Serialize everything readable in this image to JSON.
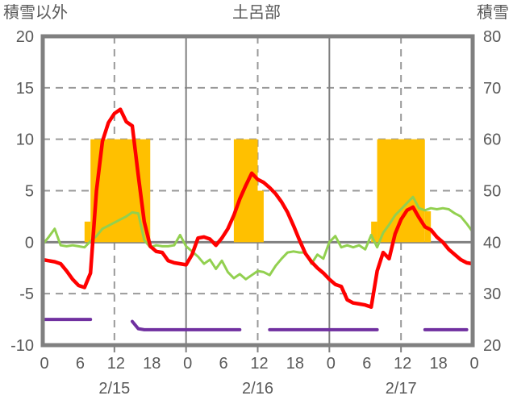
{
  "header": {
    "left_axis_title": "積雪以外",
    "title": "土呂部",
    "right_axis_title": "積雪"
  },
  "chart_data": {
    "type": "combo-bar-line",
    "title": "土呂部",
    "grid": true,
    "legend": "none",
    "colors": {
      "bar": "#FFC000",
      "red_line": "#FF0000",
      "green_line": "#92D050",
      "purple_line": "#7030A0",
      "frame": "#808080",
      "gridline": "#999999",
      "text": "#595959"
    },
    "left_axis": {
      "title": "積雪以外",
      "min": -10,
      "max": 20,
      "tick_step": 5,
      "tick_values": [
        20,
        15,
        10,
        5,
        0,
        -5,
        -10
      ],
      "tick_labels": [
        "20",
        "15",
        "10",
        "5",
        "0",
        "-5",
        "-10"
      ]
    },
    "right_axis": {
      "title": "積雪",
      "min": 20,
      "max": 80,
      "tick_step": 10,
      "tick_values": [
        80,
        70,
        60,
        50,
        40,
        30,
        20
      ],
      "tick_labels": [
        "80",
        "70",
        "60",
        "50",
        "40",
        "30",
        "20"
      ]
    },
    "x_axis": {
      "total_hours": 72,
      "tick_hours": [
        0,
        6,
        12,
        18,
        24,
        30,
        36,
        42,
        48,
        54,
        60,
        66,
        72
      ],
      "tick_labels": [
        "0",
        "6",
        "12",
        "18",
        "0",
        "6",
        "12",
        "18",
        "0",
        "6",
        "12",
        "18",
        "0"
      ],
      "day_labels": [
        {
          "label": "2/15",
          "hour": 12
        },
        {
          "label": "2/16",
          "hour": 36
        },
        {
          "label": "2/17",
          "hour": 60
        }
      ],
      "solid_gridline_hours": [
        24,
        48
      ],
      "dashed_gridline_hours": [
        12,
        36,
        60
      ],
      "bottom_tick_hours": [
        12,
        24,
        36,
        48,
        60
      ]
    },
    "bars": {
      "name": "snowfall-bars",
      "axis": "left",
      "color": "#FFC000",
      "segments": [
        {
          "start_hour": 7,
          "end_hour": 8,
          "value": 2
        },
        {
          "start_hour": 8,
          "end_hour": 18,
          "value": 10
        },
        {
          "start_hour": 32,
          "end_hour": 36,
          "value": 10
        },
        {
          "start_hour": 36,
          "end_hour": 37,
          "value": 5
        },
        {
          "start_hour": 55,
          "end_hour": 56,
          "value": 2
        },
        {
          "start_hour": 56,
          "end_hour": 64,
          "value": 10
        },
        {
          "start_hour": 64,
          "end_hour": 65,
          "value": 3
        }
      ]
    },
    "series": [
      {
        "name": "green-line",
        "axis": "left",
        "color": "#92D050",
        "stroke_width": 3,
        "values": [
          -0.2,
          0.5,
          1.3,
          -0.3,
          -0.4,
          -0.3,
          -0.4,
          -0.5,
          0.1,
          0.6,
          1.3,
          1.6,
          1.9,
          2.2,
          2.5,
          2.9,
          2.8,
          0.2,
          -0.5,
          -0.3,
          -0.4,
          -0.4,
          -0.3,
          0.7,
          -0.4,
          -0.9,
          -1.4,
          -2.1,
          -1.7,
          -2.6,
          -1.8,
          -2.9,
          -3.5,
          -3.1,
          -3.6,
          -3.2,
          -2.8,
          -2.9,
          -3.2,
          -2.3,
          -1.6,
          -1.0,
          -0.9,
          -1.0,
          -1.0,
          -2.1,
          -1.2,
          -1.6,
          0.0,
          0.6,
          -0.5,
          -0.3,
          -0.5,
          -0.3,
          -0.7,
          0.7,
          -0.5,
          0.9,
          1.7,
          2.6,
          3.2,
          3.8,
          4.4,
          3.3,
          3.1,
          3.3,
          3.2,
          3.3,
          3.2,
          2.8,
          2.5,
          1.8,
          1.0
        ]
      },
      {
        "name": "red-line",
        "axis": "left",
        "color": "#FF0000",
        "stroke_width": 4.5,
        "values": [
          -1.7,
          -1.8,
          -1.9,
          -2.1,
          -2.8,
          -3.6,
          -4.2,
          -4.4,
          -3.0,
          5.0,
          9.8,
          11.6,
          12.5,
          12.9,
          11.7,
          11.3,
          6.5,
          2.0,
          -0.4,
          -0.9,
          -1.0,
          -1.8,
          -2.0,
          -2.1,
          -2.2,
          -1.2,
          0.4,
          0.5,
          0.3,
          -0.3,
          0.4,
          1.3,
          2.6,
          4.2,
          5.5,
          6.7,
          6.1,
          5.8,
          5.3,
          4.7,
          3.9,
          2.9,
          1.6,
          0.2,
          -1.1,
          -1.9,
          -2.5,
          -3.0,
          -3.6,
          -4.1,
          -4.3,
          -5.6,
          -5.9,
          -6.0,
          -6.1,
          -6.3,
          -2.8,
          -1.0,
          -1.6,
          0.8,
          2.2,
          3.1,
          3.4,
          2.4,
          1.5,
          1.2,
          0.5,
          0.0,
          -0.7,
          -1.2,
          -1.7,
          -2.0,
          -2.1
        ]
      },
      {
        "name": "purple-line",
        "axis": "right",
        "color": "#7030A0",
        "stroke_width": 4,
        "values": [
          25,
          25,
          25,
          25,
          25,
          25,
          25,
          25,
          25,
          null,
          null,
          null,
          null,
          null,
          null,
          24.6,
          23.2,
          23,
          23,
          23,
          23,
          23,
          23,
          23,
          23,
          23,
          23,
          23,
          23,
          23,
          23,
          23,
          23,
          23,
          null,
          null,
          null,
          null,
          23,
          23,
          23,
          23,
          23,
          23,
          23,
          23,
          23,
          23,
          23,
          23,
          23,
          23,
          23,
          23,
          23,
          23,
          23,
          null,
          null,
          null,
          null,
          null,
          null,
          null,
          23,
          23,
          23,
          23,
          23,
          23,
          23,
          23,
          null
        ]
      }
    ]
  }
}
